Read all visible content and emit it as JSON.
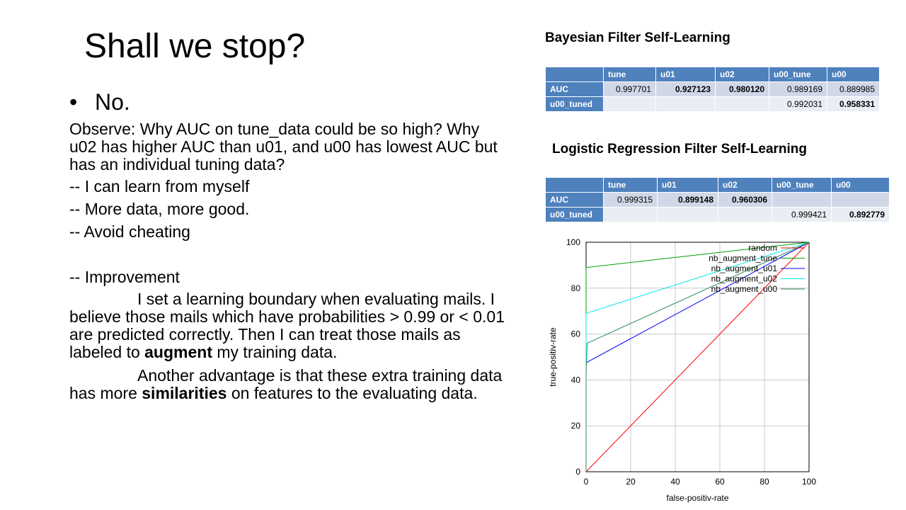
{
  "slide": {
    "title": "Shall we stop?",
    "bullet": "No.",
    "paragraphs": {
      "observe": "Observe: Why AUC on tune_data could be so high? Why u02 has higher AUC than u01, and u00 has lowest AUC but has an individual tuning data?",
      "learn": "-- I can learn from myself",
      "more_data": "-- More data, more good.",
      "cheating": "-- Avoid cheating",
      "improvement": "-- Improvement",
      "boundary_a": "I set a learning boundary when evaluating mails. I believe those mails which have probabilities > 0.99 or < 0.01 are predicted correctly. Then I can treat those mails as labeled to ",
      "boundary_bold": "augment",
      "boundary_b": " my training data.",
      "advantage_a": "Another advantage is that these extra training data has more ",
      "advantage_bold": "similarities",
      "advantage_b": " on features to the evaluating data."
    }
  },
  "bayes_table": {
    "title": "Bayesian Filter Self-Learning",
    "headers": [
      "",
      "tune",
      "u01",
      "u02",
      "u00_tune",
      "u00"
    ],
    "rows": [
      {
        "label": "AUC",
        "cells": [
          "0.997701",
          "0.927123",
          "0.980120",
          "0.989169",
          "0.889985"
        ]
      },
      {
        "label": "u00_tuned",
        "cells": [
          "",
          "",
          "",
          "0.992031",
          "0.958331"
        ]
      }
    ]
  },
  "logreg_table": {
    "title": "Logistic Regression Filter Self-Learning",
    "headers": [
      "",
      "tune",
      "u01",
      "u02",
      "u00_tune",
      "u00"
    ],
    "rows": [
      {
        "label": "AUC",
        "cells": [
          "0.999315",
          "0.899148",
          "0.960306",
          "",
          ""
        ]
      },
      {
        "label": "u00_tuned",
        "cells": [
          "",
          "",
          "",
          "0.999421",
          "0.892779"
        ]
      }
    ]
  },
  "chart_data": {
    "type": "line",
    "xlabel": "false-positiv-rate",
    "ylabel": "true-positiv-rate",
    "xlim": [
      0,
      100
    ],
    "ylim": [
      0,
      100
    ],
    "xticks": [
      "0",
      "20",
      "40",
      "60",
      "80",
      "100"
    ],
    "yticks": [
      "0",
      "20",
      "40",
      "60",
      "80",
      "100"
    ],
    "grid": true,
    "legend_position": "top-right",
    "series": [
      {
        "name": "random",
        "color": "#ff0000",
        "points": [
          [
            0,
            0
          ],
          [
            100,
            100
          ]
        ]
      },
      {
        "name": "nb_augment_tune",
        "color": "#00a000",
        "points": [
          [
            0,
            0
          ],
          [
            0,
            89
          ],
          [
            100,
            100
          ]
        ]
      },
      {
        "name": "nb_augment_u01",
        "color": "#0000ff",
        "points": [
          [
            0,
            0
          ],
          [
            0,
            47.5
          ],
          [
            100,
            100
          ]
        ]
      },
      {
        "name": "nb_augment_u02",
        "color": "#00e8e8",
        "points": [
          [
            0,
            0
          ],
          [
            0,
            69
          ],
          [
            100,
            100
          ]
        ]
      },
      {
        "name": "nb_augment_u00",
        "color": "#2e8b57",
        "points": [
          [
            0,
            0
          ],
          [
            0,
            43
          ],
          [
            0.5,
            56
          ],
          [
            100,
            100
          ]
        ]
      }
    ]
  }
}
